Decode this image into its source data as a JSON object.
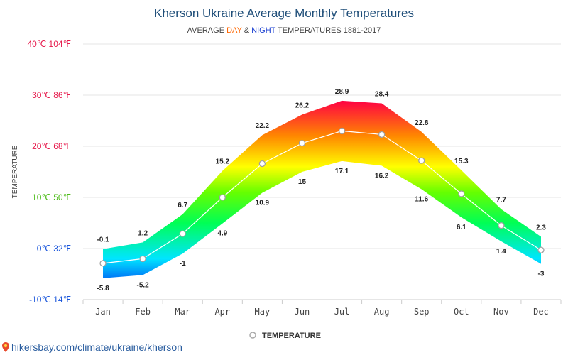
{
  "chart_data": {
    "type": "area",
    "title": "Kherson Ukraine Average Monthly Temperatures",
    "subtitle": {
      "prefix": "AVERAGE ",
      "day": "DAY",
      "amp": " & ",
      "night": "NIGHT",
      "suffix": " TEMPERATURES 1881-2017"
    },
    "ylabel": "TEMPERATURE",
    "ylim": [
      -10,
      40
    ],
    "yticks": [
      {
        "value": 40,
        "label": "40℃ 104℉",
        "color": "#e6194b"
      },
      {
        "value": 30,
        "label": "30℃ 86℉",
        "color": "#e6194b"
      },
      {
        "value": 20,
        "label": "20℃ 68℉",
        "color": "#e6194b"
      },
      {
        "value": 10,
        "label": "10℃ 50℉",
        "color": "#4cbb17"
      },
      {
        "value": 0,
        "label": "0℃ 32℉",
        "color": "#1a56db"
      },
      {
        "value": -10,
        "label": "-10℃ 14℉",
        "color": "#1a56db"
      }
    ],
    "categories": [
      "Jan",
      "Feb",
      "Mar",
      "Apr",
      "May",
      "Jun",
      "Jul",
      "Aug",
      "Sep",
      "Oct",
      "Nov",
      "Dec"
    ],
    "series": [
      {
        "name": "DAY",
        "values": [
          -0.1,
          1.2,
          6.7,
          15.2,
          22.2,
          26.2,
          28.9,
          28.4,
          22.8,
          15.3,
          7.7,
          2.3
        ]
      },
      {
        "name": "NIGHT",
        "values": [
          -5.8,
          -5.2,
          -1,
          4.9,
          10.9,
          15,
          17.1,
          16.2,
          11.6,
          6.1,
          1.4,
          -3
        ]
      },
      {
        "name": "TEMPERATURE",
        "values": [
          -2.9,
          -2.0,
          2.9,
          10.0,
          16.6,
          20.6,
          23.0,
          22.3,
          17.2,
          10.7,
          4.5,
          -0.3
        ]
      }
    ],
    "legend": {
      "position": "bottom",
      "label": "TEMPERATURE"
    },
    "grid": true,
    "colors": {
      "title": "#1f4e79",
      "day": "#ff6600",
      "night": "#1a3fd1",
      "footer": "#2a5d9f"
    }
  },
  "footer": {
    "text": "hikersbay.com/climate/ukraine/kherson",
    "icon": "map-pin-icon"
  }
}
